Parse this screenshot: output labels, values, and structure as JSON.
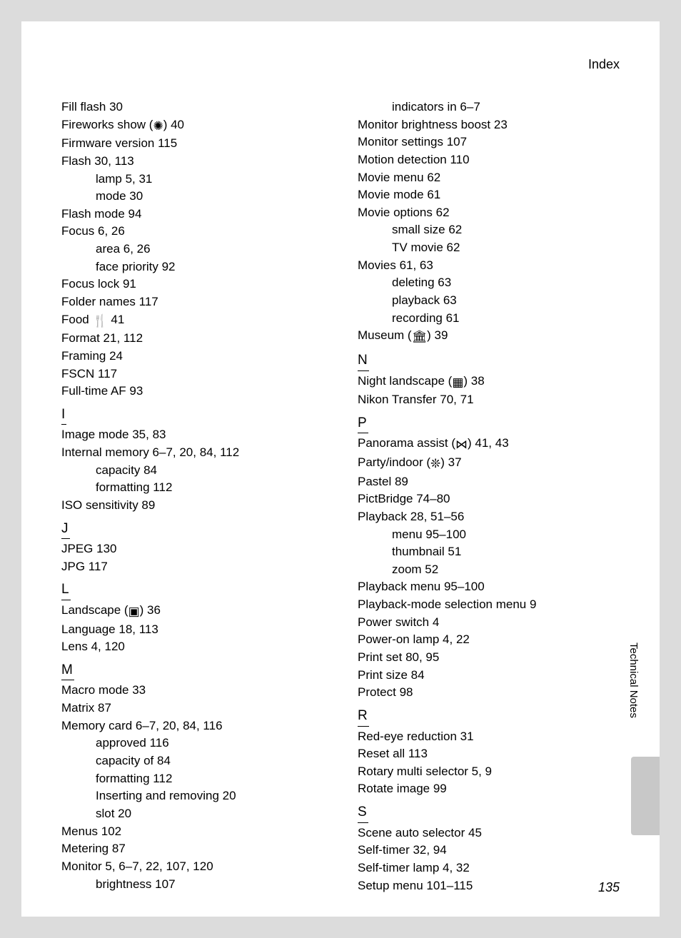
{
  "header": {
    "title": "Index"
  },
  "side": {
    "label": "Technical Notes"
  },
  "page_number": "135",
  "left": {
    "f": {
      "items": [
        {
          "t": "Fill flash 30"
        },
        {
          "t": "Fireworks show (",
          "icon": "fireworks",
          "after": ") 40"
        },
        {
          "t": "Firmware version 115"
        },
        {
          "t": "Flash 30, 113"
        },
        {
          "t": "lamp 5, 31",
          "sub": true
        },
        {
          "t": "mode 30",
          "sub": true
        },
        {
          "t": "Flash mode 94"
        },
        {
          "t": "Focus 6, 26"
        },
        {
          "t": "area 6, 26",
          "sub": true
        },
        {
          "t": "face priority 92",
          "sub": true
        },
        {
          "t": "Focus lock 91"
        },
        {
          "t": "Folder names 117"
        },
        {
          "t": "Food ",
          "icon": "food",
          "after": " 41"
        },
        {
          "t": "Format 21, 112"
        },
        {
          "t": "Framing 24"
        },
        {
          "t": "FSCN 117"
        },
        {
          "t": "Full-time AF 93"
        }
      ]
    },
    "i": {
      "letter": "I",
      "items": [
        {
          "t": "Image mode 35, 83"
        },
        {
          "t": "Internal memory 6–7, 20, 84, 112"
        },
        {
          "t": "capacity 84",
          "sub": true
        },
        {
          "t": "formatting 112",
          "sub": true
        },
        {
          "t": "ISO sensitivity 89"
        }
      ]
    },
    "j": {
      "letter": "J",
      "items": [
        {
          "t": "JPEG 130"
        },
        {
          "t": "JPG 117"
        }
      ]
    },
    "l": {
      "letter": "L",
      "items": [
        {
          "t": "Landscape (",
          "icon": "landscape",
          "after": ") 36"
        },
        {
          "t": "Language 18, 113"
        },
        {
          "t": "Lens 4, 120"
        }
      ]
    },
    "m": {
      "letter": "M",
      "items": [
        {
          "t": "Macro mode 33"
        },
        {
          "t": "Matrix 87"
        },
        {
          "t": "Memory card 6–7, 20, 84, 116"
        },
        {
          "t": "approved 116",
          "sub": true
        },
        {
          "t": "capacity of 84",
          "sub": true
        },
        {
          "t": "formatting 112",
          "sub": true
        },
        {
          "t": "Inserting and removing 20",
          "sub": true
        },
        {
          "t": "slot 20",
          "sub": true
        },
        {
          "t": "Menus 102"
        },
        {
          "t": "Metering 87"
        },
        {
          "t": "Monitor 5, 6–7, 22, 107, 120"
        },
        {
          "t": "brightness 107",
          "sub": true
        }
      ]
    }
  },
  "right": {
    "m2": {
      "items": [
        {
          "t": "indicators in 6–7",
          "sub": true
        },
        {
          "t": "Monitor brightness boost 23"
        },
        {
          "t": "Monitor settings 107"
        },
        {
          "t": "Motion detection 110"
        },
        {
          "t": "Movie menu 62"
        },
        {
          "t": "Movie mode 61"
        },
        {
          "t": "Movie options 62"
        },
        {
          "t": "small size 62",
          "sub": true
        },
        {
          "t": "TV movie 62",
          "sub": true
        },
        {
          "t": "Movies 61, 63"
        },
        {
          "t": "deleting 63",
          "sub": true
        },
        {
          "t": "playback 63",
          "sub": true
        },
        {
          "t": "recording 61",
          "sub": true
        },
        {
          "t": "Museum (",
          "icon": "museum",
          "after": ") 39"
        }
      ]
    },
    "n": {
      "letter": "N",
      "items": [
        {
          "t": "Night landscape (",
          "icon": "night",
          "after": ") 38"
        },
        {
          "t": "Nikon Transfer 70, 71"
        }
      ]
    },
    "p": {
      "letter": "P",
      "items": [
        {
          "t": "Panorama assist (",
          "icon": "panorama",
          "after": ") 41, 43"
        },
        {
          "t": "Party/indoor (",
          "icon": "party",
          "after": ") 37"
        },
        {
          "t": "Pastel 89"
        },
        {
          "t": "PictBridge 74–80"
        },
        {
          "t": "Playback 28, 51–56"
        },
        {
          "t": "menu 95–100",
          "sub": true
        },
        {
          "t": "thumbnail 51",
          "sub": true
        },
        {
          "t": "zoom 52",
          "sub": true
        },
        {
          "t": "Playback menu 95–100"
        },
        {
          "t": "Playback-mode selection menu 9"
        },
        {
          "t": "Power switch 4"
        },
        {
          "t": "Power-on lamp 4, 22"
        },
        {
          "t": "Print set 80, 95"
        },
        {
          "t": "Print size 84"
        },
        {
          "t": "Protect 98"
        }
      ]
    },
    "r": {
      "letter": "R",
      "items": [
        {
          "t": "Red-eye reduction 31"
        },
        {
          "t": "Reset all 113"
        },
        {
          "t": "Rotary multi selector 5, 9"
        },
        {
          "t": "Rotate image 99"
        }
      ]
    },
    "s": {
      "letter": "S",
      "items": [
        {
          "t": "Scene auto selector 45"
        },
        {
          "t": "Self-timer 32, 94"
        },
        {
          "t": "Self-timer lamp 4, 32"
        },
        {
          "t": "Setup menu 101–115"
        }
      ]
    }
  },
  "icons": {
    "fireworks": "✺",
    "food": "🍴",
    "landscape": "▣",
    "museum": "🏛",
    "night": "▦",
    "panorama": "⋈",
    "party": "❊"
  }
}
